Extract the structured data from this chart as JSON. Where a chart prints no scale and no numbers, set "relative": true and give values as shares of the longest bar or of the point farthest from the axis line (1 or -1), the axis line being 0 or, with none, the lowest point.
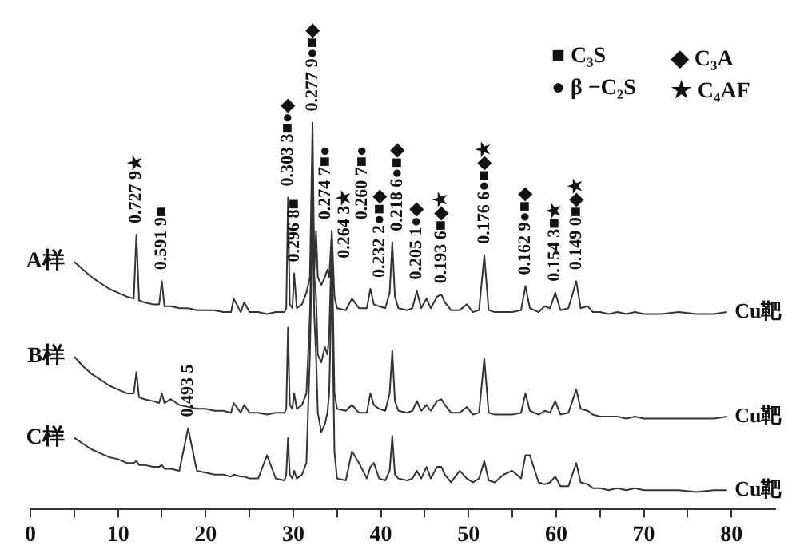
{
  "chart_data": {
    "type": "line",
    "relative": true,
    "marker": "none",
    "legend": false,
    "xlim": [
      0,
      85
    ],
    "xticks": [
      0,
      {
        "value": 5,
        "label": null
      },
      10,
      {
        "value": 15,
        "label": null
      },
      20,
      {
        "value": 25,
        "label": null
      },
      30,
      {
        "value": 35,
        "label": null
      },
      40,
      {
        "value": 45,
        "label": null
      },
      50,
      {
        "value": 55,
        "label": null
      },
      60,
      {
        "value": 65,
        "label": null
      },
      70,
      {
        "value": 75,
        "label": null
      },
      80
    ],
    "x": [
      5,
      6,
      7,
      8,
      9,
      10,
      11,
      11.8,
      12.1,
      12.4,
      13,
      14,
      14.7,
      15.0,
      15.3,
      16,
      17,
      18,
      19,
      20,
      21,
      22,
      22.9,
      23.2,
      24,
      24.4,
      25,
      26,
      27,
      28,
      29,
      29.2,
      29.4,
      29.6,
      29.9,
      30.1,
      30.4,
      31,
      31.5,
      31.9,
      32.2,
      32.4,
      32.6,
      32.8,
      33.2,
      33.6,
      33.9,
      34.1,
      34.4,
      34.7,
      35,
      36,
      36.7,
      37.5,
      38.4,
      38.8,
      39.2,
      39.8,
      40.5,
      41.0,
      41.3,
      41.6,
      42,
      43,
      43.6,
      44.1,
      44.6,
      45.2,
      45.7,
      46.4,
      46.9,
      47.3,
      48,
      49,
      49.8,
      50.5,
      51.2,
      51.8,
      52.3,
      53,
      54,
      55,
      56,
      56.5,
      57,
      58,
      58.7,
      59.3,
      59.9,
      60.5,
      61.4,
      62.3,
      62.8,
      63.6,
      64.2,
      65,
      66,
      67,
      68,
      69,
      70,
      72,
      74,
      76,
      78,
      79.5
    ],
    "series": [
      {
        "name": "A样",
        "color": "#333333",
        "values": [
          0.64,
          0.62,
          0.6,
          0.585,
          0.57,
          0.56,
          0.55,
          0.545,
          0.71,
          0.54,
          0.535,
          0.53,
          0.53,
          0.59,
          0.525,
          0.525,
          0.52,
          0.52,
          0.515,
          0.515,
          0.515,
          0.51,
          0.51,
          0.545,
          0.51,
          0.535,
          0.51,
          0.51,
          0.505,
          0.51,
          0.51,
          0.52,
          0.806,
          0.53,
          0.52,
          0.61,
          0.52,
          0.53,
          0.56,
          0.6,
          1,
          0.62,
          0.72,
          0.6,
          0.58,
          0.6,
          0.62,
          0.6,
          0.72,
          0.55,
          0.52,
          0.515,
          0.545,
          0.52,
          0.52,
          0.57,
          0.53,
          0.525,
          0.52,
          0.56,
          0.69,
          0.55,
          0.52,
          0.515,
          0.52,
          0.565,
          0.52,
          0.545,
          0.52,
          0.55,
          0.555,
          0.535,
          0.515,
          0.515,
          0.53,
          0.51,
          0.515,
          0.657,
          0.515,
          0.51,
          0.51,
          0.51,
          0.515,
          0.577,
          0.52,
          0.51,
          0.525,
          0.52,
          0.56,
          0.515,
          0.52,
          0.59,
          0.52,
          0.525,
          0.51,
          0.51,
          0.505,
          0.51,
          0.505,
          0.51,
          0.505,
          0.505,
          0.51,
          0.505,
          0.505,
          0.51
        ]
      },
      {
        "name": "B样",
        "color": "#333333",
        "values": [
          0.395,
          0.37,
          0.35,
          0.335,
          0.32,
          0.31,
          0.3,
          0.3,
          0.355,
          0.29,
          0.285,
          0.28,
          0.275,
          0.3,
          0.275,
          0.285,
          0.27,
          0.265,
          0.26,
          0.26,
          0.255,
          0.255,
          0.25,
          0.275,
          0.25,
          0.27,
          0.25,
          0.25,
          0.245,
          0.25,
          0.25,
          0.26,
          0.47,
          0.27,
          0.26,
          0.3,
          0.26,
          0.27,
          0.3,
          0.5,
          0.85,
          0.6,
          0.55,
          0.4,
          0.38,
          0.42,
          0.4,
          0.45,
          0.7,
          0.3,
          0.26,
          0.255,
          0.27,
          0.25,
          0.25,
          0.3,
          0.27,
          0.26,
          0.255,
          0.3,
          0.41,
          0.28,
          0.255,
          0.25,
          0.255,
          0.28,
          0.255,
          0.27,
          0.255,
          0.28,
          0.285,
          0.27,
          0.25,
          0.25,
          0.265,
          0.245,
          0.25,
          0.39,
          0.25,
          0.245,
          0.245,
          0.245,
          0.25,
          0.3,
          0.255,
          0.245,
          0.255,
          0.25,
          0.28,
          0.245,
          0.25,
          0.31,
          0.26,
          0.255,
          0.245,
          0.24,
          0.24,
          0.24,
          0.235,
          0.24,
          0.235,
          0.235,
          0.235,
          0.235,
          0.235,
          0.24
        ]
      },
      {
        "name": "C样",
        "color": "#333333",
        "values": [
          0.185,
          0.17,
          0.155,
          0.145,
          0.135,
          0.13,
          0.12,
          0.12,
          0.125,
          0.115,
          0.115,
          0.11,
          0.11,
          0.115,
          0.105,
          0.105,
          0.1,
          0.21,
          0.1,
          0.095,
          0.09,
          0.09,
          0.085,
          0.09,
          0.085,
          0.085,
          0.08,
          0.08,
          0.14,
          0.08,
          0.075,
          0.09,
          0.185,
          0.09,
          0.08,
          0.1,
          0.08,
          0.09,
          0.12,
          0.4,
          0.75,
          0.5,
          0.4,
          0.25,
          0.2,
          0.22,
          0.25,
          0.3,
          0.6,
          0.15,
          0.08,
          0.075,
          0.15,
          0.12,
          0.08,
          0.11,
          0.12,
          0.08,
          0.075,
          0.1,
          0.19,
          0.09,
          0.08,
          0.075,
          0.08,
          0.1,
          0.08,
          0.11,
          0.08,
          0.11,
          0.11,
          0.09,
          0.07,
          0.1,
          0.08,
          0.07,
          0.08,
          0.125,
          0.075,
          0.07,
          0.09,
          0.1,
          0.08,
          0.14,
          0.14,
          0.07,
          0.065,
          0.07,
          0.085,
          0.06,
          0.06,
          0.12,
          0.07,
          0.065,
          0.055,
          0.055,
          0.05,
          0.055,
          0.05,
          0.055,
          0.05,
          0.05,
          0.05,
          0.045,
          0.05,
          0.05
        ]
      }
    ],
    "annotations": [
      "■ C₃S",
      "◆ C₃A",
      "● β −C₂S",
      "★ C₄AF",
      {
        "text": "0.727 9★",
        "x": 12.1,
        "y": 0.71
      },
      {
        "text": "0.591 9■",
        "x": 15.0,
        "y": 0.59
      },
      {
        "text": "0.303 3■●◆",
        "x": 29.4,
        "y": 0.806
      },
      {
        "text": "0.296 8■",
        "x": 30.1,
        "y": 0.61
      },
      {
        "text": "0.277 9●■◆",
        "x": 32.2,
        "y": 1
      },
      {
        "text": "0.274 7■●",
        "x": 32.6,
        "y": 0.72
      },
      {
        "text": "0.264 3★",
        "x": 33.9,
        "y": 0.62
      },
      {
        "text": "0.260 7■●",
        "x": 34.4,
        "y": 0.72
      },
      {
        "text": "0.232 2●■◆",
        "x": 38.8,
        "y": 0.57
      },
      {
        "text": "0.218 6●■◆",
        "x": 41.3,
        "y": 0.69
      },
      {
        "text": "0.205 1●◆",
        "x": 44.1,
        "y": 0.565
      },
      {
        "text": "0.193 6■◆★",
        "x": 46.9,
        "y": 0.555
      },
      {
        "text": "0.176 6●■◆★",
        "x": 51.8,
        "y": 0.657
      },
      {
        "text": "0.162 9●■◆",
        "x": 56.5,
        "y": 0.577
      },
      {
        "text": "0.154 3■★",
        "x": 59.9,
        "y": 0.56
      },
      {
        "text": "0.149 0■◆★",
        "x": 62.3,
        "y": 0.59
      },
      {
        "text": "0.493 5",
        "x": 18,
        "y": 0.21
      },
      {
        "text": "Cu靶",
        "x": 80,
        "y": 0.51
      },
      {
        "text": "Cu靶",
        "x": 80,
        "y": 0.24
      },
      {
        "text": "Cu靶",
        "x": 80,
        "y": 0.05
      }
    ]
  }
}
